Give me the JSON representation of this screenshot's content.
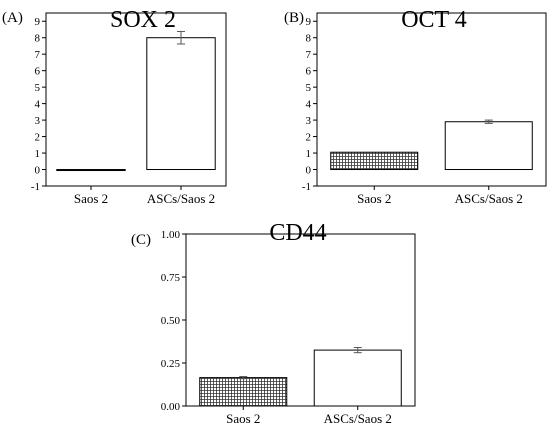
{
  "chart_data": [
    {
      "panel_label": "(A)",
      "type": "bar",
      "title": "SOX 2",
      "categories": [
        "Saos 2",
        "ASCs/Saos 2"
      ],
      "values": [
        0.0,
        8.0
      ],
      "errors": [
        0.0,
        0.38
      ],
      "ylim": [
        -1,
        9.5
      ],
      "yticks": [
        -1,
        0,
        1,
        2,
        3,
        4,
        5,
        6,
        7,
        8,
        9
      ],
      "ytick_labels": [
        "-1",
        "0",
        "1",
        "2",
        "3",
        "4",
        "5",
        "6",
        "7",
        "8",
        "9"
      ],
      "bar_fills": [
        "hatch",
        "white"
      ],
      "xlabel": "",
      "ylabel": ""
    },
    {
      "panel_label": "(B)",
      "type": "bar",
      "title": "OCT 4",
      "categories": [
        "Saos 2",
        "ASCs/Saos 2"
      ],
      "values": [
        1.05,
        2.9
      ],
      "errors": [
        0.0,
        0.1
      ],
      "ylim": [
        -1,
        9.5
      ],
      "yticks": [
        -1,
        0,
        1,
        2,
        3,
        4,
        5,
        6,
        7,
        8,
        9
      ],
      "ytick_labels": [
        "-1",
        "0",
        "1",
        "2",
        "3",
        "4",
        "5",
        "6",
        "7",
        "8",
        "9"
      ],
      "bar_fills": [
        "hatch",
        "white"
      ],
      "xlabel": "",
      "ylabel": ""
    },
    {
      "panel_label": "(C)",
      "type": "bar",
      "title": "CD44",
      "categories": [
        "Saos 2",
        "ASCs/Saos 2"
      ],
      "values": [
        0.165,
        0.325
      ],
      "errors": [
        0.006,
        0.015
      ],
      "ylim": [
        0,
        1.0
      ],
      "yticks": [
        0,
        0.25,
        0.5,
        0.75,
        1.0
      ],
      "ytick_labels": [
        "0.00",
        "0.25",
        "0.50",
        "0.75",
        "1.00"
      ],
      "bar_fills": [
        "hatch",
        "white"
      ],
      "xlabel": "",
      "ylabel": ""
    }
  ]
}
